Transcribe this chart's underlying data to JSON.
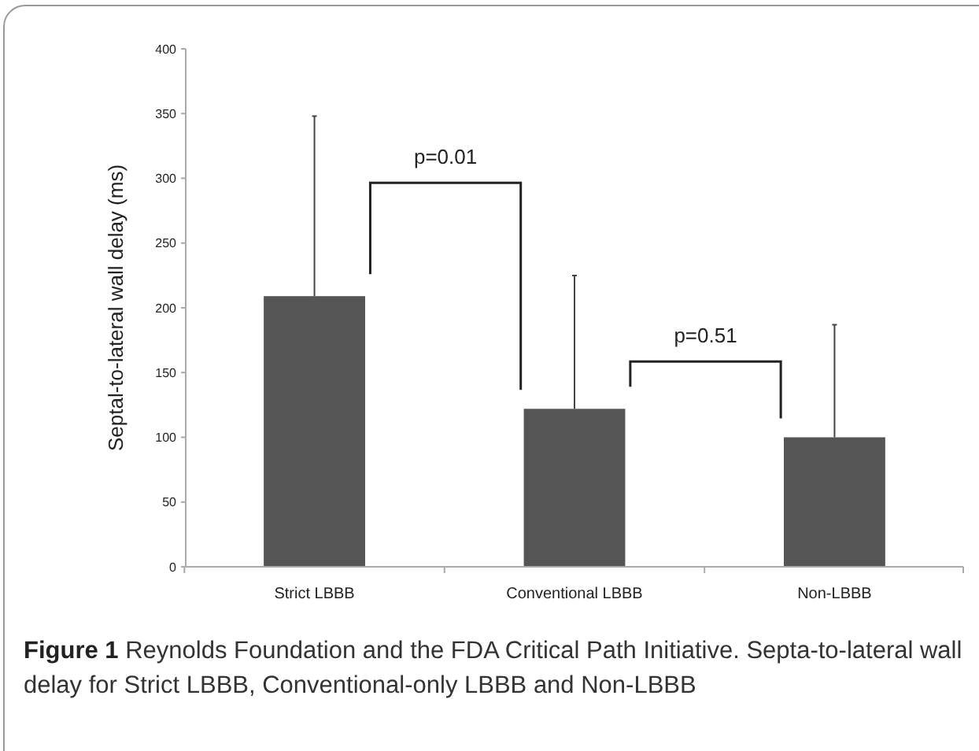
{
  "chart_data": {
    "type": "bar",
    "title": "Figure 1",
    "subtitle": "Reynolds Foundation and the FDA Critical Path Initiative. Septa-to-lateral wall delay for Strict LBBB, Conventional-only LBBB and Non-LBBB",
    "ylabel": "Septal-to-lateral wall delay (ms)",
    "categories": [
      "Strict LBBB",
      "Conventional LBBB",
      "Non-LBBB"
    ],
    "values": [
      209,
      122,
      100
    ],
    "errors": [
      [
        209,
        348
      ],
      [
        122,
        225
      ],
      [
        100,
        187
      ]
    ],
    "color": "#555555",
    "ylim": [
      0,
      400
    ],
    "yticks": [
      0,
      50,
      100,
      150,
      200,
      250,
      300,
      350,
      400
    ],
    "annotations": [
      "p=0.01",
      "p=0.51"
    ]
  }
}
